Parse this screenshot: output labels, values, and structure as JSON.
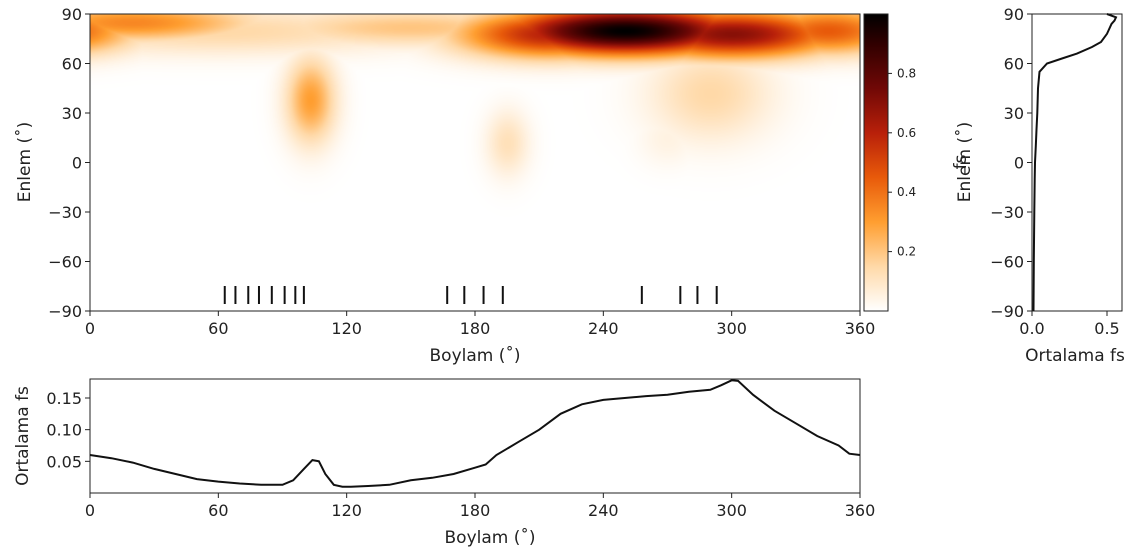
{
  "chart_data": [
    {
      "type": "heatmap",
      "title": "",
      "xlabel": "Boylam (˚)",
      "ylabel": "Enlem (˚)",
      "xlim": [
        0,
        360
      ],
      "ylim": [
        -90,
        90
      ],
      "xticks": [
        0,
        60,
        120,
        180,
        240,
        300,
        360
      ],
      "yticks": [
        -90,
        -60,
        -30,
        0,
        30,
        60,
        90
      ],
      "colorbar": {
        "label": "fs",
        "range": [
          0,
          1
        ],
        "ticks": [
          0.2,
          0.4,
          0.6,
          0.8
        ],
        "colormap": "gist_heat_r"
      },
      "blobs": [
        {
          "lon": 20,
          "lat": 85,
          "slon": 40,
          "slat": 8,
          "value": 0.35
        },
        {
          "lon": 60,
          "lat": 80,
          "slon": 70,
          "slat": 10,
          "value": 0.15
        },
        {
          "lon": 150,
          "lat": 82,
          "slon": 50,
          "slat": 8,
          "value": 0.2
        },
        {
          "lon": 250,
          "lat": 80,
          "slon": 40,
          "slat": 10,
          "value": 1.0
        },
        {
          "lon": 215,
          "lat": 78,
          "slon": 30,
          "slat": 10,
          "value": 0.6
        },
        {
          "lon": 300,
          "lat": 78,
          "slon": 35,
          "slat": 10,
          "value": 0.7
        },
        {
          "lon": 345,
          "lat": 80,
          "slon": 25,
          "slat": 10,
          "value": 0.45
        },
        {
          "lon": 103,
          "lat": 38,
          "slon": 8,
          "slat": 18,
          "value": 0.3
        },
        {
          "lon": 195,
          "lat": 12,
          "slon": 7,
          "slat": 14,
          "value": 0.12
        },
        {
          "lon": 290,
          "lat": 42,
          "slon": 20,
          "slat": 20,
          "value": 0.15
        },
        {
          "lon": 270,
          "lat": 15,
          "slon": 10,
          "slat": 12,
          "value": 0.05
        }
      ],
      "markers_lon": [
        63,
        68,
        74,
        79,
        85,
        91,
        96,
        100,
        167,
        175,
        184,
        193,
        258,
        276,
        284,
        293
      ]
    },
    {
      "type": "line",
      "title": "",
      "xlabel": "Ortalama fs",
      "ylabel": "Enlem (˚)",
      "xlim": [
        0,
        0.6
      ],
      "ylim": [
        -90,
        90
      ],
      "xticks": [
        0.0,
        0.5
      ],
      "yticks": [
        -90,
        -60,
        -30,
        0,
        30,
        60,
        90
      ],
      "series": [
        {
          "x": [
            0.01,
            0.012,
            0.015,
            0.018,
            0.02,
            0.025,
            0.03,
            0.035,
            0.04,
            0.05,
            0.1,
            0.2,
            0.3,
            0.4,
            0.46,
            0.5,
            0.51,
            0.53,
            0.55,
            0.56,
            0.5
          ],
          "y": [
            -90,
            -60,
            -30,
            -10,
            0,
            10,
            20,
            30,
            45,
            55,
            60,
            63,
            66,
            70,
            73,
            78,
            80,
            84,
            86,
            88,
            90
          ]
        }
      ]
    },
    {
      "type": "line",
      "title": "",
      "xlabel": "Boylam (˚)",
      "ylabel": "Ortalama fs",
      "xlim": [
        0,
        360
      ],
      "ylim": [
        0,
        0.18
      ],
      "xticks": [
        0,
        60,
        120,
        180,
        240,
        300,
        360
      ],
      "yticks": [
        0.05,
        0.1,
        0.15
      ],
      "series": [
        {
          "x": [
            0,
            10,
            20,
            30,
            40,
            50,
            60,
            70,
            80,
            90,
            95,
            100,
            104,
            107,
            110,
            114,
            118,
            122,
            130,
            140,
            150,
            160,
            170,
            180,
            185,
            190,
            195,
            200,
            210,
            220,
            230,
            240,
            250,
            260,
            270,
            280,
            290,
            295,
            300,
            303,
            310,
            320,
            330,
            340,
            350,
            355,
            360
          ],
          "y": [
            0.06,
            0.055,
            0.048,
            0.038,
            0.03,
            0.022,
            0.018,
            0.015,
            0.013,
            0.013,
            0.02,
            0.038,
            0.052,
            0.05,
            0.03,
            0.013,
            0.01,
            0.01,
            0.011,
            0.013,
            0.02,
            0.024,
            0.03,
            0.04,
            0.045,
            0.06,
            0.07,
            0.08,
            0.1,
            0.125,
            0.14,
            0.147,
            0.15,
            0.153,
            0.155,
            0.16,
            0.163,
            0.17,
            0.178,
            0.177,
            0.155,
            0.13,
            0.11,
            0.09,
            0.075,
            0.062,
            0.06
          ]
        }
      ]
    }
  ]
}
